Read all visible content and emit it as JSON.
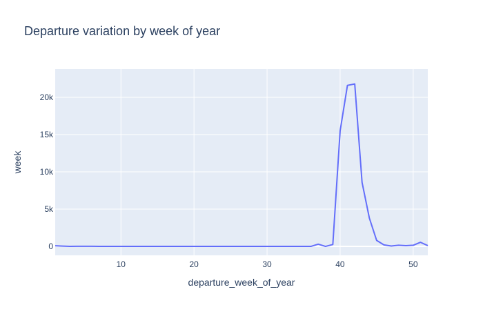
{
  "chart_data": {
    "type": "line",
    "title": "Departure variation by week of year",
    "xlabel": "departure_week_of_year",
    "ylabel": "week",
    "xlim": [
      1,
      52
    ],
    "ylim": [
      -1200,
      23800
    ],
    "x_ticks": [
      10,
      20,
      30,
      40,
      50
    ],
    "x_tick_labels": [
      "10",
      "20",
      "30",
      "40",
      "50"
    ],
    "y_ticks": [
      0,
      5000,
      10000,
      15000,
      20000
    ],
    "y_tick_labels": [
      "0",
      "5k",
      "10k",
      "15k",
      "20k"
    ],
    "grid": true,
    "series": [
      {
        "color": "#636efa",
        "x": [
          1,
          2,
          3,
          4,
          5,
          6,
          7,
          8,
          9,
          10,
          11,
          12,
          13,
          14,
          15,
          16,
          17,
          18,
          19,
          20,
          21,
          22,
          23,
          24,
          25,
          26,
          27,
          28,
          29,
          30,
          31,
          32,
          33,
          34,
          35,
          36,
          37,
          38,
          39,
          40,
          41,
          42,
          43,
          44,
          45,
          46,
          47,
          48,
          49,
          50,
          51,
          52
        ],
        "y": [
          80,
          40,
          0,
          20,
          20,
          10,
          0,
          0,
          0,
          0,
          0,
          0,
          0,
          0,
          0,
          0,
          0,
          0,
          0,
          0,
          0,
          0,
          0,
          0,
          0,
          0,
          0,
          0,
          0,
          0,
          0,
          0,
          0,
          0,
          0,
          0,
          300,
          0,
          250,
          15500,
          21600,
          21800,
          8600,
          3800,
          800,
          200,
          50,
          150,
          100,
          150,
          550,
          100
        ]
      }
    ]
  },
  "colors": {
    "plot_background": "#e5ecf6",
    "grid": "#ffffff",
    "text": "#2a3f5f",
    "line": "#636efa"
  }
}
